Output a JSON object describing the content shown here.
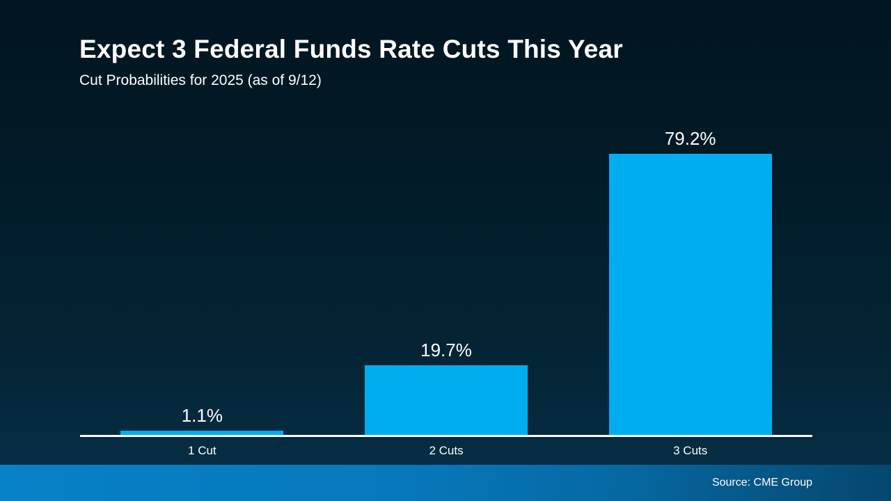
{
  "slide": {
    "title": "Expect 3 Federal Funds Rate Cuts This Year",
    "subtitle": "Cut Probabilities for 2025 (as of 9/12)",
    "source": "Source: CME Group"
  },
  "colors": {
    "bar": "#00aeef",
    "axis": "#ffffff",
    "text": "#ffffff",
    "background_top": "#011520",
    "background_bottom": "#07304a",
    "footer_gradient_left": "#0781c8",
    "footer_gradient_right": "#05466d"
  },
  "chart_data": {
    "type": "bar",
    "title": "Expect 3 Federal Funds Rate Cuts This Year",
    "subtitle": "Cut Probabilities for 2025 (as of 9/12)",
    "categories": [
      "1 Cut",
      "2 Cuts",
      "3 Cuts"
    ],
    "values": [
      1.1,
      19.7,
      79.2
    ],
    "value_labels": [
      "1.1%",
      "19.7%",
      "79.2%"
    ],
    "xlabel": "",
    "ylabel": "",
    "ylim": [
      0,
      100
    ],
    "grid": false,
    "legend": false,
    "bar_color": "#00aeef",
    "source": "Source: CME Group"
  }
}
